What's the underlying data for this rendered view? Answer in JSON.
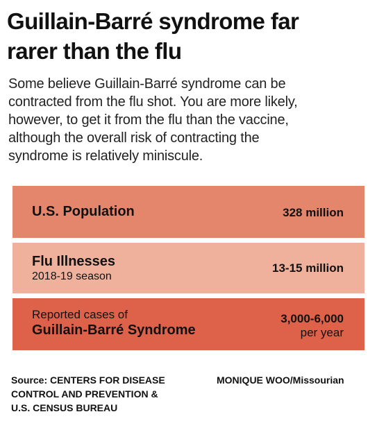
{
  "header": {
    "title": [
      "Guillain-Barré syndrome far",
      "rarer than the flu"
    ],
    "subtitle": [
      "Some believe Guillain-Barré syndrome can be",
      "contracted from the flu shot. You are more likely,",
      "however, to get it from the flu than the vaccine,",
      "although the overall risk of contracting the",
      "syndrome is relatively miniscule."
    ]
  },
  "table": {
    "rows": [
      {
        "label": "U.S. Population",
        "value": "328 million"
      },
      {
        "label": "Flu Illnesses",
        "sublabel": "2018-19 season",
        "value": "13-15 million"
      },
      {
        "prelabel": "Reported cases of",
        "label": "Guillain-Barré Syndrome",
        "value": "3,000-6,000",
        "value_sub": "per year"
      }
    ]
  },
  "footer": {
    "source": [
      "Source: CENTERS FOR DISEASE",
      "CONTROL AND PREVENTION &",
      "U.S. CENSUS BUREAU"
    ],
    "credit": "MONIQUE WOO/Missourian"
  }
}
